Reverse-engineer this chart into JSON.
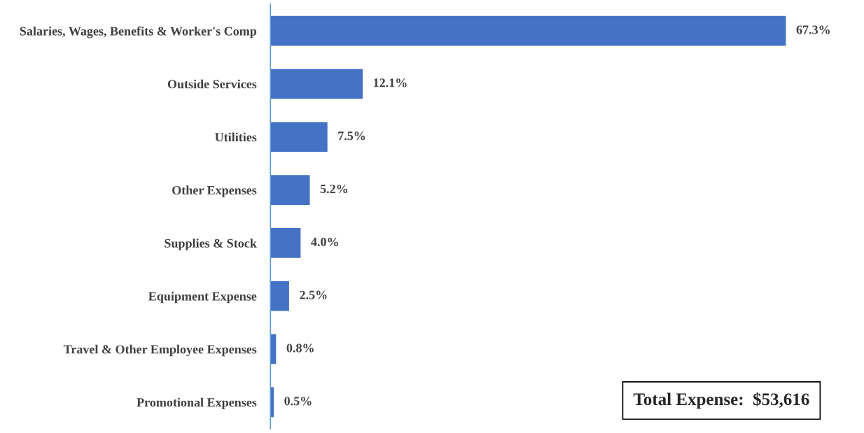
{
  "chart_data": {
    "type": "bar",
    "orientation": "horizontal",
    "categories": [
      "Salaries, Wages, Benefits & Worker's Comp",
      "Outside Services",
      "Utilities",
      "Other Expenses",
      "Supplies & Stock",
      "Equipment Expense",
      "Travel & Other Employee Expenses",
      "Promotional Expenses"
    ],
    "values": [
      67.3,
      12.1,
      7.5,
      5.2,
      4.0,
      2.5,
      0.8,
      0.5
    ],
    "value_labels": [
      "67.3%",
      "12.1%",
      "7.5%",
      "5.2%",
      "4.0%",
      "2.5%",
      "0.8%",
      "0.5%"
    ],
    "color": "#4472c4",
    "tick_labels": "y",
    "grid": false,
    "legend": false,
    "annotations": [
      "Total Expense:  $53,616"
    ]
  }
}
